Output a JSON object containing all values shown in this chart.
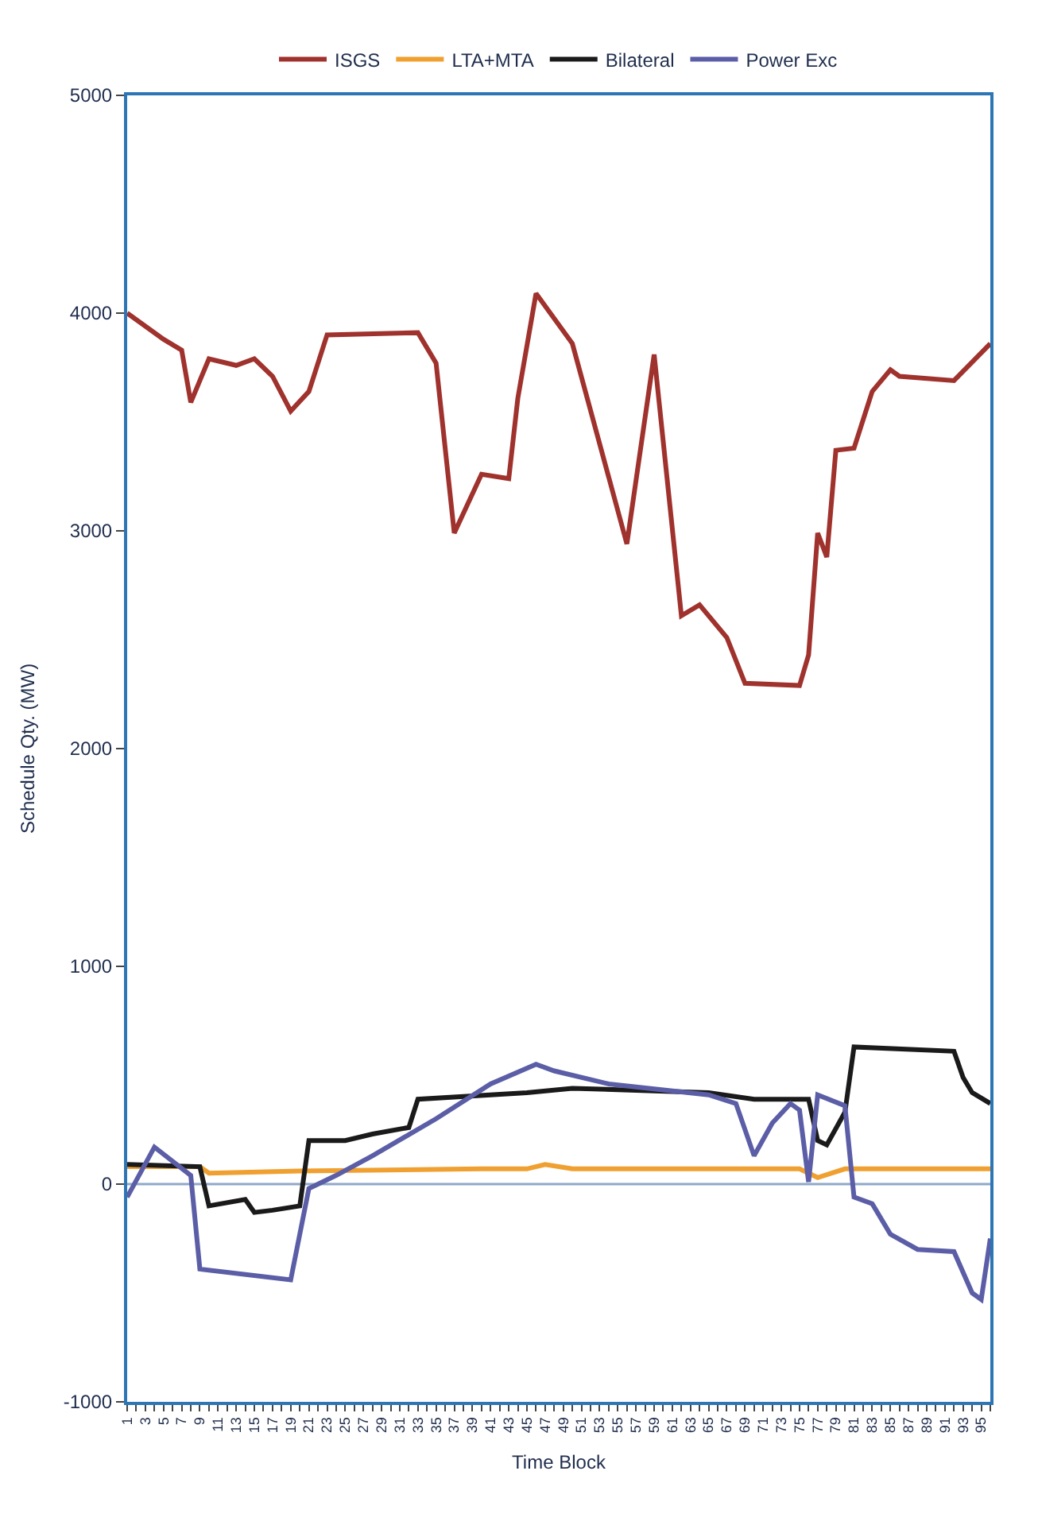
{
  "chart_data": {
    "type": "line",
    "xlabel": "Time Block",
    "ylabel": "Schedule Qty. (MW)",
    "xlim": [
      1,
      96
    ],
    "ylim": [
      -1000,
      5000
    ],
    "yticks": [
      -1000,
      0,
      1000,
      2000,
      3000,
      4000,
      5000
    ],
    "xticks": [
      1,
      {
        "value": 2,
        "label": null
      },
      3,
      {
        "value": 4,
        "label": null
      },
      5,
      {
        "value": 6,
        "label": null
      },
      7,
      {
        "value": 8,
        "label": null
      },
      9,
      {
        "value": 10,
        "label": null
      },
      11,
      {
        "value": 12,
        "label": null
      },
      13,
      {
        "value": 14,
        "label": null
      },
      15,
      {
        "value": 16,
        "label": null
      },
      17,
      {
        "value": 18,
        "label": null
      },
      19,
      {
        "value": 20,
        "label": null
      },
      21,
      {
        "value": 22,
        "label": null
      },
      23,
      {
        "value": 24,
        "label": null
      },
      25,
      {
        "value": 26,
        "label": null
      },
      27,
      {
        "value": 28,
        "label": null
      },
      29,
      {
        "value": 30,
        "label": null
      },
      31,
      {
        "value": 32,
        "label": null
      },
      33,
      {
        "value": 34,
        "label": null
      },
      35,
      {
        "value": 36,
        "label": null
      },
      37,
      {
        "value": 38,
        "label": null
      },
      39,
      {
        "value": 40,
        "label": null
      },
      41,
      {
        "value": 42,
        "label": null
      },
      43,
      {
        "value": 44,
        "label": null
      },
      45,
      {
        "value": 46,
        "label": null
      },
      47,
      {
        "value": 48,
        "label": null
      },
      49,
      {
        "value": 50,
        "label": null
      },
      51,
      {
        "value": 52,
        "label": null
      },
      53,
      {
        "value": 54,
        "label": null
      },
      55,
      {
        "value": 56,
        "label": null
      },
      57,
      {
        "value": 58,
        "label": null
      },
      59,
      {
        "value": 60,
        "label": null
      },
      61,
      {
        "value": 62,
        "label": null
      },
      63,
      {
        "value": 64,
        "label": null
      },
      65,
      {
        "value": 66,
        "label": null
      },
      67,
      {
        "value": 68,
        "label": null
      },
      69,
      {
        "value": 70,
        "label": null
      },
      71,
      {
        "value": 72,
        "label": null
      },
      73,
      {
        "value": 74,
        "label": null
      },
      75,
      {
        "value": 76,
        "label": null
      },
      77,
      {
        "value": 78,
        "label": null
      },
      79,
      {
        "value": 80,
        "label": null
      },
      81,
      {
        "value": 82,
        "label": null
      },
      83,
      {
        "value": 84,
        "label": null
      },
      85,
      {
        "value": 86,
        "label": null
      },
      87,
      {
        "value": 88,
        "label": null
      },
      89,
      {
        "value": 90,
        "label": null
      },
      91,
      {
        "value": 92,
        "label": null
      },
      93,
      {
        "value": 94,
        "label": null
      },
      95,
      {
        "value": 96,
        "label": null
      }
    ],
    "ref_lines": [
      {
        "axis": "y",
        "value": 0,
        "color": "#8fa8c8"
      }
    ],
    "grid": false,
    "legend": "top",
    "marker": "none",
    "line_style": "solid",
    "series": [
      {
        "name": "ISGS",
        "color": "#a0322d",
        "x": [
          1,
          5,
          7,
          8,
          10,
          13,
          15,
          17,
          19,
          21,
          23,
          33,
          35,
          37,
          40,
          43,
          44,
          46,
          50,
          56,
          59,
          62,
          64,
          67,
          69,
          75,
          76,
          77,
          78,
          79,
          81,
          83,
          85,
          86,
          92,
          96
        ],
        "values": [
          4000,
          3880,
          3830,
          3590,
          3790,
          3760,
          3790,
          3710,
          3550,
          3640,
          3900,
          3910,
          3770,
          2990,
          3260,
          3240,
          3610,
          4090,
          3860,
          2940,
          3810,
          2610,
          2660,
          2510,
          2300,
          2290,
          2430,
          2990,
          2880,
          3370,
          3380,
          3640,
          3740,
          3710,
          3690,
          3860
        ]
      },
      {
        "name": "LTA+MTA",
        "color": "#f0a030",
        "x": [
          1,
          9,
          10,
          20,
          40,
          45,
          47,
          50,
          75,
          77,
          80,
          96
        ],
        "values": [
          80,
          80,
          50,
          60,
          70,
          70,
          90,
          70,
          70,
          30,
          70,
          70
        ]
      },
      {
        "name": "Bilateral",
        "color": "#1a1a1a",
        "x": [
          1,
          9,
          10,
          14,
          15,
          17,
          20,
          21,
          25,
          28,
          32,
          33,
          45,
          50,
          65,
          70,
          76,
          77,
          78,
          80,
          81,
          92,
          93,
          94,
          96
        ],
        "values": [
          90,
          80,
          -100,
          -70,
          -130,
          -120,
          -100,
          200,
          200,
          230,
          260,
          390,
          420,
          440,
          420,
          390,
          390,
          200,
          180,
          330,
          630,
          610,
          490,
          420,
          370
        ]
      },
      {
        "name": "Power Exc",
        "color": "#5b5ea6",
        "x": [
          1,
          4,
          8,
          9,
          19,
          21,
          24,
          28,
          35,
          41,
          46,
          48,
          54,
          65,
          68,
          70,
          72,
          74,
          75,
          76,
          77,
          80,
          81,
          83,
          85,
          88,
          92,
          94,
          95,
          96
        ],
        "values": [
          -60,
          170,
          40,
          -390,
          -440,
          -20,
          40,
          130,
          300,
          460,
          550,
          520,
          460,
          410,
          370,
          130,
          280,
          370,
          340,
          10,
          410,
          360,
          -60,
          -90,
          -230,
          -300,
          -310,
          -500,
          -530,
          -250
        ]
      }
    ]
  }
}
